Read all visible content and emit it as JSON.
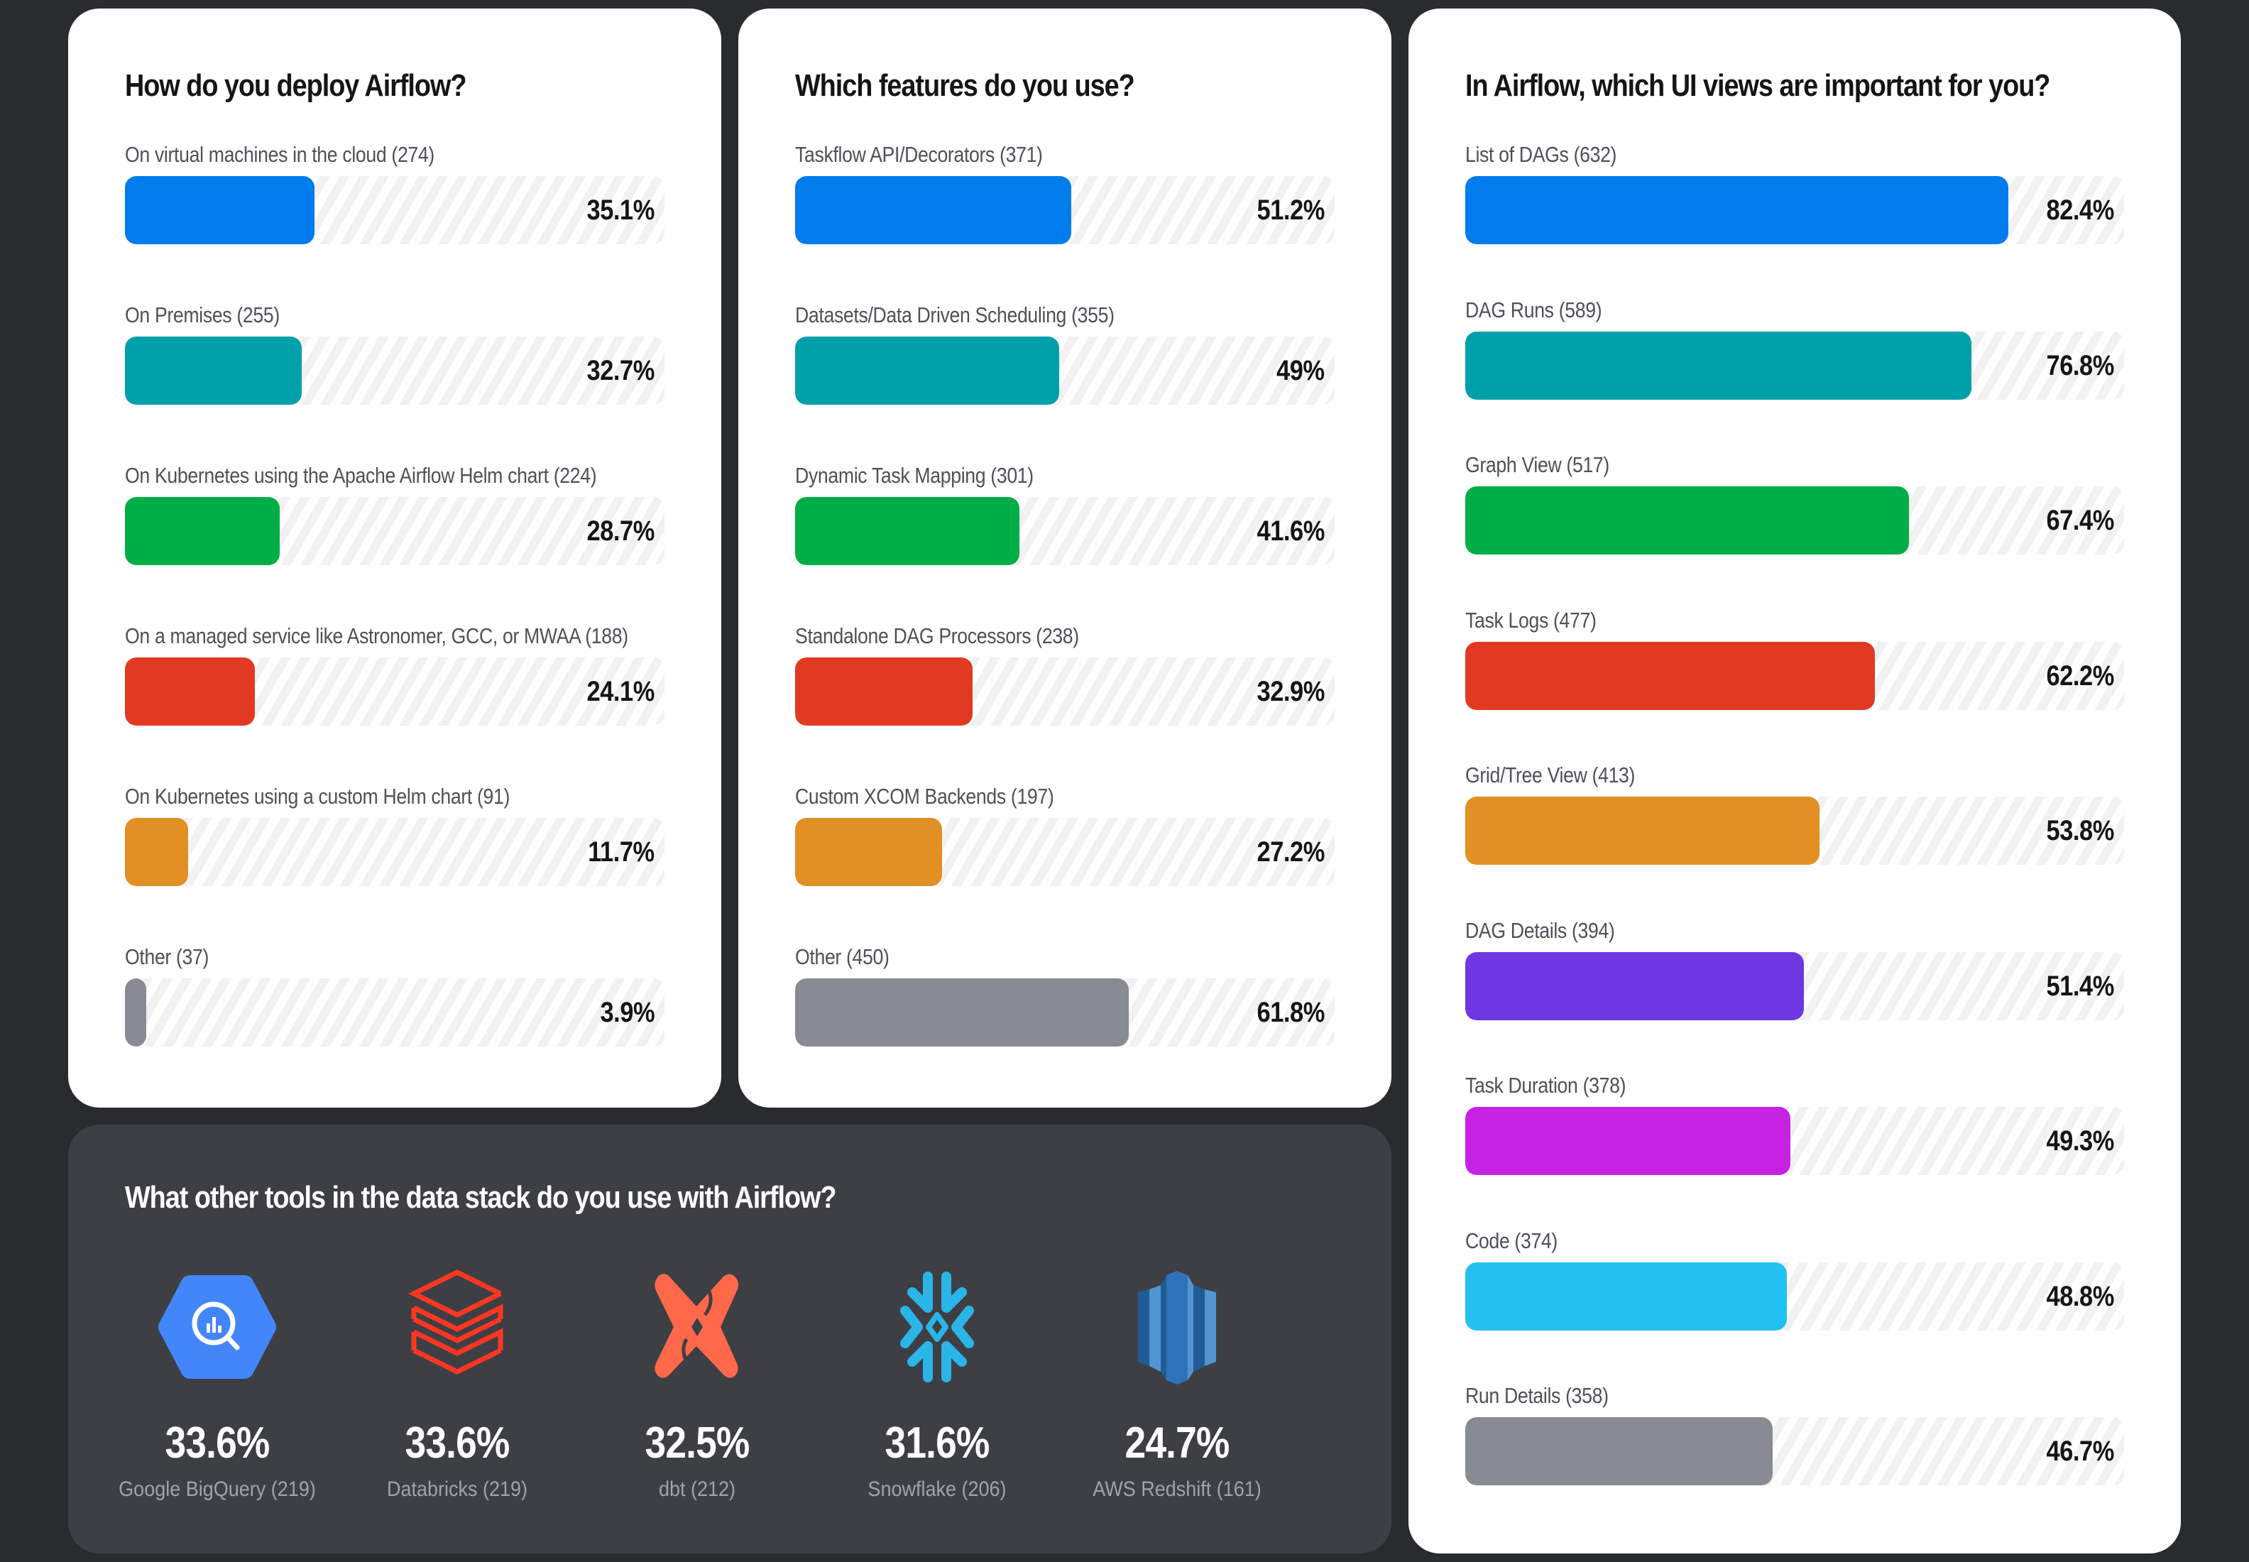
{
  "colors": {
    "page_bg": "#2a2b2f",
    "card_light": "#ffffff",
    "card_dark": "#3e3f45",
    "track_stripe": "#f1f1f1",
    "palette": [
      "#007cec",
      "#00a0aa",
      "#00ae47",
      "#e23a22",
      "#e28f23",
      "#888b92",
      "#6f37e2",
      "#c622e4",
      "#23c1ef"
    ]
  },
  "chart_data": [
    {
      "type": "bar",
      "orientation": "horizontal",
      "title": "How do you deploy Airflow?",
      "categories": [
        "On virtual machines in the cloud",
        "On Premises",
        "On Kubernetes using the Apache Airflow Helm chart",
        "On a managed service like Astronomer, GCC, or MWAA",
        "On Kubernetes using a custom Helm chart",
        "Other"
      ],
      "counts": [
        274,
        255,
        224,
        188,
        91,
        37
      ],
      "values": [
        35.1,
        32.7,
        28.7,
        24.1,
        11.7,
        3.9
      ],
      "value_labels": [
        "35.1%",
        "32.7%",
        "28.7%",
        "24.1%",
        "11.7%",
        "3.9%"
      ],
      "labels": [
        "On virtual machines in the cloud (274)",
        "On Premises (255)",
        "On Kubernetes using the Apache Airflow Helm chart (224)",
        "On a managed service like Astronomer, GCC, or MWAA (188)",
        "On Kubernetes using a custom Helm chart (91)",
        "Other (37)"
      ],
      "colors": [
        "#007cec",
        "#00a0aa",
        "#00ae47",
        "#e23a22",
        "#e28f23",
        "#888b92"
      ],
      "xlim": [
        0,
        100
      ],
      "unit": "%"
    },
    {
      "type": "bar",
      "orientation": "horizontal",
      "title": "Which features do you use?",
      "categories": [
        "Taskflow API/Decorators",
        "Datasets/Data Driven Scheduling",
        "Dynamic Task Mapping",
        "Standalone DAG Processors",
        "Custom XCOM Backends",
        "Other"
      ],
      "counts": [
        371,
        355,
        301,
        238,
        197,
        450
      ],
      "values": [
        51.2,
        49,
        41.6,
        32.9,
        27.2,
        61.8
      ],
      "value_labels": [
        "51.2%",
        "49%",
        "41.6%",
        "32.9%",
        "27.2%",
        "61.8%"
      ],
      "labels": [
        "Taskflow API/Decorators (371)",
        "Datasets/Data Driven Scheduling (355)",
        "Dynamic Task Mapping (301)",
        "Standalone DAG Processors (238)",
        "Custom XCOM Backends (197)",
        "Other (450)"
      ],
      "colors": [
        "#007cec",
        "#00a0aa",
        "#00ae47",
        "#e23a22",
        "#e28f23",
        "#888b92"
      ],
      "xlim": [
        0,
        100
      ],
      "unit": "%"
    },
    {
      "type": "bar",
      "orientation": "horizontal",
      "title": "In Airflow, which UI views are important for you?",
      "categories": [
        "List of DAGs",
        "DAG Runs",
        "Graph View",
        "Task Logs",
        "Grid/Tree View",
        "DAG Details",
        "Task Duration",
        "Code",
        "Run Details"
      ],
      "counts": [
        632,
        589,
        517,
        477,
        413,
        394,
        378,
        374,
        358
      ],
      "values": [
        82.4,
        76.8,
        67.4,
        62.2,
        53.8,
        51.4,
        49.3,
        48.8,
        46.7
      ],
      "value_labels": [
        "82.4%",
        "76.8%",
        "67.4%",
        "62.2%",
        "53.8%",
        "51.4%",
        "49.3%",
        "48.8%",
        "46.7%"
      ],
      "labels": [
        "List of DAGs (632)",
        "DAG Runs (589)",
        "Graph View (517)",
        "Task Logs (477)",
        "Grid/Tree View (413)",
        "DAG Details (394)",
        "Task Duration (378)",
        "Code (374)",
        "Run Details (358)"
      ],
      "colors": [
        "#007cec",
        "#00a0aa",
        "#00ae47",
        "#e23a22",
        "#e28f23",
        "#6f37e2",
        "#c622e4",
        "#23c1ef",
        "#888b92"
      ],
      "xlim": [
        0,
        100
      ],
      "unit": "%"
    },
    {
      "type": "table",
      "title": "What other tools in the data stack do you use with Airflow?",
      "categories": [
        "Google BigQuery",
        "Databricks",
        "dbt",
        "Snowflake",
        "AWS Redshift"
      ],
      "counts": [
        219,
        219,
        212,
        206,
        161
      ],
      "values": [
        33.6,
        33.6,
        32.5,
        31.6,
        24.7
      ],
      "value_labels": [
        "33.6%",
        "33.6%",
        "32.5%",
        "31.6%",
        "24.7%"
      ],
      "labels": [
        "Google BigQuery (219)",
        "Databricks (219)",
        "dbt (212)",
        "Snowflake (206)",
        "AWS Redshift (161)"
      ],
      "icons": [
        "bigquery-icon",
        "databricks-icon",
        "dbt-icon",
        "snowflake-icon",
        "redshift-icon"
      ],
      "unit": "%"
    }
  ]
}
